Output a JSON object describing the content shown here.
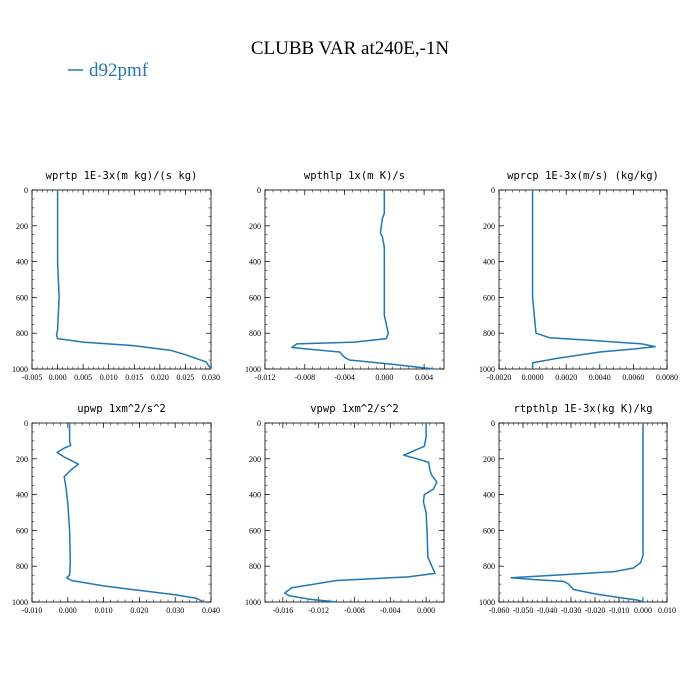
{
  "figure": {
    "title": "CLUBB VAR at240E,-1N",
    "legend": {
      "label": "d92pmf",
      "color": "#1f77b4"
    }
  },
  "chart_data": [
    {
      "type": "line",
      "title": "wprtp  1E-3x(m kg)/(s kg)",
      "xlim": [
        -0.005,
        0.03
      ],
      "xticks": [
        -0.005,
        0.0,
        0.005,
        0.01,
        0.015,
        0.02,
        0.025,
        0.03
      ],
      "xtick_labels": [
        "-0.005",
        "0.000",
        "0.005",
        "0.010",
        "0.015",
        "0.020",
        "0.025",
        "0.030"
      ],
      "ylim": [
        1000,
        0
      ],
      "yticks": [
        0,
        200,
        400,
        600,
        800,
        1000
      ],
      "ytick_labels": [
        "0",
        "200",
        "400",
        "600",
        "800",
        "1000"
      ],
      "series": [
        {
          "name": "d92pmf",
          "color": "#1f77b4",
          "x": [
            0.0,
            0.0,
            0.0,
            0.0003,
            0.0,
            -0.0002,
            0.0,
            0.005,
            0.015,
            0.022,
            0.025,
            0.027,
            0.029,
            0.03
          ],
          "y": [
            0,
            200,
            400,
            600,
            780,
            810,
            830,
            850,
            870,
            895,
            920,
            940,
            960,
            1000
          ]
        }
      ]
    },
    {
      "type": "line",
      "title": "wpthlp  1x(m K)/s",
      "xlim": [
        -0.012,
        0.006
      ],
      "xticks": [
        -0.012,
        -0.008,
        -0.004,
        0.0,
        0.004
      ],
      "xtick_labels": [
        "-0.012",
        "-0.008",
        "-0.004",
        "0.000",
        "0.004"
      ],
      "ylim": [
        1000,
        0
      ],
      "yticks": [
        0,
        200,
        400,
        600,
        800,
        1000
      ],
      "ytick_labels": [
        "0",
        "200",
        "400",
        "600",
        "800",
        "1000"
      ],
      "series": [
        {
          "name": "d92pmf",
          "color": "#1f77b4",
          "x": [
            0.0,
            0.0,
            -0.0002,
            -0.0004,
            -0.0002,
            0.0,
            0.0,
            0.0,
            0.0004,
            0.0002,
            -0.003,
            -0.0088,
            -0.0093,
            -0.0075,
            -0.0045,
            -0.004,
            -0.0035,
            0.001,
            0.005
          ],
          "y": [
            0,
            130,
            160,
            240,
            260,
            320,
            500,
            700,
            800,
            830,
            850,
            860,
            880,
            890,
            905,
            935,
            950,
            975,
            1000
          ]
        }
      ]
    },
    {
      "type": "line",
      "title": "wprcp  1E-3x(m/s) (kg/kg)",
      "xlim": [
        -0.002,
        0.008
      ],
      "xticks": [
        -0.002,
        0.0,
        0.002,
        0.004,
        0.006,
        0.008
      ],
      "xtick_labels": [
        "-0.0020",
        "0.0000",
        "0.0020",
        "0.0040",
        "0.0060",
        "0.0080"
      ],
      "ylim": [
        1000,
        0
      ],
      "yticks": [
        0,
        200,
        400,
        600,
        800,
        1000
      ],
      "ytick_labels": [
        "0",
        "200",
        "400",
        "600",
        "800",
        "1000"
      ],
      "series": [
        {
          "name": "d92pmf",
          "color": "#1f77b4",
          "x": [
            0.0,
            0.0,
            0.0,
            0.0,
            0.0002,
            0.001,
            0.0035,
            0.0065,
            0.0073,
            0.006,
            0.004,
            0.0015,
            0.0,
            0.0
          ],
          "y": [
            0,
            200,
            400,
            600,
            800,
            825,
            840,
            860,
            875,
            888,
            905,
            940,
            965,
            1000
          ]
        }
      ]
    },
    {
      "type": "line",
      "title": "upwp  1xm^2/s^2",
      "xlim": [
        -0.01,
        0.04
      ],
      "xticks": [
        -0.01,
        0.0,
        0.01,
        0.02,
        0.03,
        0.04
      ],
      "xtick_labels": [
        "-0.010",
        "0.000",
        "0.010",
        "0.020",
        "0.030",
        "0.040"
      ],
      "ylim": [
        1000,
        0
      ],
      "yticks": [
        0,
        200,
        400,
        600,
        800,
        1000
      ],
      "ytick_labels": [
        "0",
        "200",
        "400",
        "600",
        "800",
        "1000"
      ],
      "series": [
        {
          "name": "d92pmf",
          "color": "#1f77b4",
          "x": [
            0.0005,
            0.0005,
            0.0008,
            -0.001,
            -0.003,
            -0.001,
            0.001,
            0.003,
            0.001,
            -0.001,
            -0.0005,
            0.0,
            0.0005,
            0.0007,
            0.0005,
            -0.0003,
            0.001,
            0.01,
            0.02,
            0.03,
            0.036,
            0.038
          ],
          "y": [
            0,
            100,
            125,
            140,
            165,
            190,
            210,
            230,
            260,
            300,
            360,
            450,
            600,
            780,
            850,
            865,
            880,
            910,
            935,
            960,
            980,
            1000
          ]
        }
      ]
    },
    {
      "type": "line",
      "title": "vpwp  1xm^2/s^2",
      "xlim": [
        -0.018,
        0.002
      ],
      "xticks": [
        -0.016,
        -0.012,
        -0.008,
        -0.004,
        0.0
      ],
      "xtick_labels": [
        "-0.016",
        "-0.012",
        "-0.008",
        "-0.004",
        "0.000"
      ],
      "ylim": [
        1000,
        0
      ],
      "yticks": [
        0,
        200,
        400,
        600,
        800,
        1000
      ],
      "ytick_labels": [
        "0",
        "200",
        "400",
        "600",
        "800",
        "1000"
      ],
      "series": [
        {
          "name": "d92pmf",
          "color": "#1f77b4",
          "x": [
            0.0,
            0.0,
            -0.0002,
            -0.0025,
            -0.001,
            0.0003,
            0.0004,
            0.0006,
            0.0012,
            0.0008,
            -0.0002,
            -0.0003,
            0.0,
            0.0001,
            0.0002,
            0.001,
            -0.002,
            -0.01,
            -0.015,
            -0.0158,
            -0.0153,
            -0.013,
            -0.01
          ],
          "y": [
            0,
            80,
            130,
            180,
            200,
            220,
            260,
            290,
            330,
            370,
            400,
            440,
            500,
            600,
            750,
            840,
            860,
            880,
            920,
            950,
            965,
            985,
            1000
          ]
        }
      ]
    },
    {
      "type": "line",
      "title": "rtpthlp  1E-3x(kg K)/kg",
      "xlim": [
        -0.06,
        0.01
      ],
      "xticks": [
        -0.06,
        -0.05,
        -0.04,
        -0.03,
        -0.02,
        -0.01,
        0.0,
        0.01
      ],
      "xtick_labels": [
        "-0.060",
        "-0.050",
        "-0.040",
        "-0.030",
        "-0.020",
        "-0.010",
        "0.000",
        "0.010"
      ],
      "ylim": [
        1000,
        0
      ],
      "yticks": [
        0,
        200,
        400,
        600,
        800,
        1000
      ],
      "ytick_labels": [
        "0",
        "200",
        "400",
        "600",
        "800",
        "1000"
      ],
      "series": [
        {
          "name": "d92pmf",
          "color": "#1f77b4",
          "x": [
            0.0,
            0.0,
            0.0,
            0.0,
            -0.001,
            -0.004,
            -0.012,
            -0.03,
            -0.055,
            -0.045,
            -0.033,
            -0.031,
            -0.029,
            -0.02,
            -0.01,
            -0.002,
            0.0
          ],
          "y": [
            0,
            300,
            600,
            740,
            780,
            810,
            830,
            845,
            865,
            875,
            885,
            900,
            930,
            955,
            975,
            990,
            1000
          ]
        }
      ]
    }
  ]
}
